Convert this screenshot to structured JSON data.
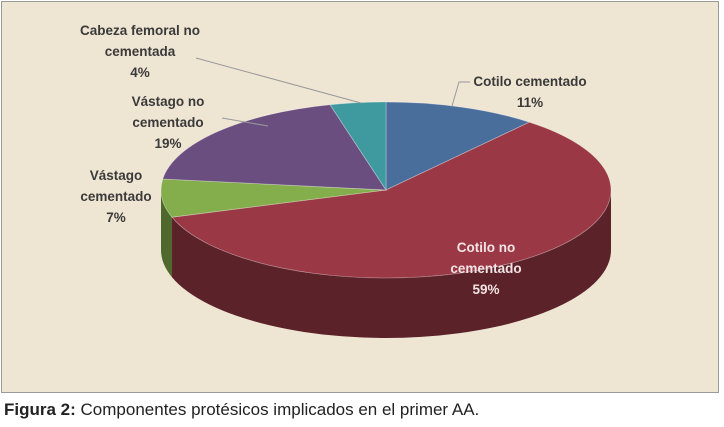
{
  "chart_data": {
    "type": "pie3d",
    "categories": [
      "Cotilo cementado",
      "Cotilo no cementado",
      "Vástago cementado",
      "Vástago no cementado",
      "Cabeza femoral no cementada"
    ],
    "values": [
      11,
      59,
      7,
      19,
      4
    ],
    "value_labels": [
      "11%",
      "59%",
      "7%",
      "19%",
      "4%"
    ],
    "colors": [
      "#4a6e9c",
      "#9a3845",
      "#84ae4c",
      "#6a4e80",
      "#3f9a9f"
    ]
  },
  "figure": {
    "label": "Figura 2:",
    "text": "Componentes protésicos implicados en el primer AA."
  }
}
